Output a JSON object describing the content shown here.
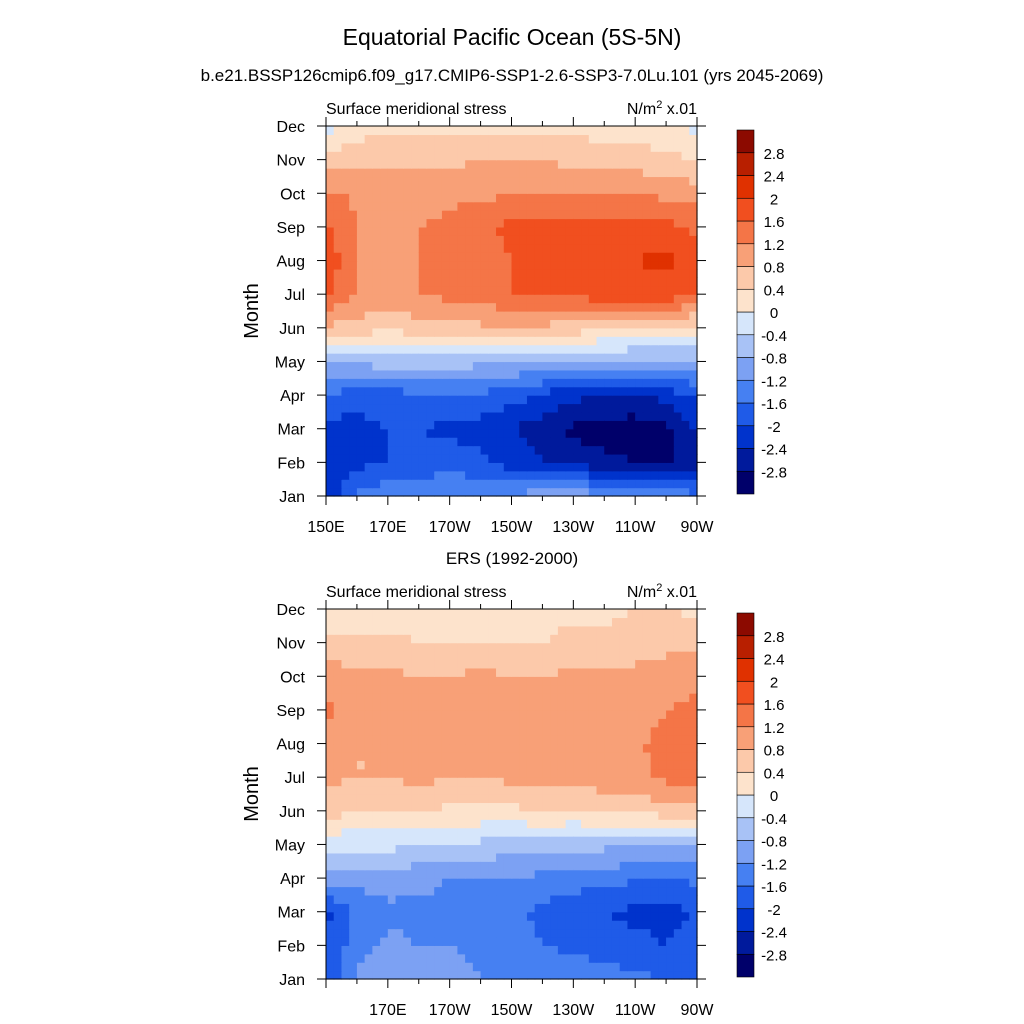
{
  "figure": {
    "title": "Equatorial Pacific Ocean (5S-5N)"
  },
  "chart_data": [
    {
      "type": "heatmap",
      "title": "b.e21.BSSP126cmip6.f09_g17.CMIP6-SSP1-2.6-SSP3-7.0Lu.101 (yrs 2045-2069)",
      "left_label": "Surface meridional stress",
      "right_label": "N/m",
      "units_exponent": "2",
      "units_suffix": " x.01",
      "ylabel": "Month",
      "xlabel": "",
      "x_tick_labels": [
        "150E",
        "170E",
        "170W",
        "150W",
        "130W",
        "110W",
        "90W"
      ],
      "y_tick_labels": [
        "Jan",
        "Feb",
        "Mar",
        "Apr",
        "May",
        "Jun",
        "Jul",
        "Aug",
        "Sep",
        "Oct",
        "Nov",
        "Dec"
      ],
      "x": [
        150,
        160,
        170,
        180,
        190,
        200,
        210,
        220,
        230,
        240,
        250,
        260,
        270
      ],
      "y": [
        "Jan",
        "Feb",
        "Mar",
        "Apr",
        "May",
        "Jun",
        "Jul",
        "Aug",
        "Sep",
        "Oct",
        "Nov",
        "Dec"
      ],
      "z": [
        [
          -2.3,
          -1.5,
          -1.3,
          -1.2,
          -1.2,
          -1.2,
          -1.1,
          -1.0,
          -1.0,
          -1.0,
          -1.1,
          -1.3,
          -1.5
        ],
        [
          -2.3,
          -2.1,
          -2.0,
          -1.9,
          -1.8,
          -1.9,
          -2.2,
          -2.4,
          -2.5,
          -2.7,
          -2.8,
          -2.9,
          -2.6
        ],
        [
          -2.2,
          -2.1,
          -2.0,
          -2.0,
          -2.1,
          -2.2,
          -2.4,
          -2.6,
          -2.9,
          -3.0,
          -3.0,
          -2.9,
          -2.4
        ],
        [
          -1.6,
          -1.9,
          -1.8,
          -1.7,
          -1.6,
          -1.7,
          -1.8,
          -2.1,
          -2.3,
          -2.4,
          -2.5,
          -2.3,
          -1.9
        ],
        [
          -0.8,
          -0.7,
          -0.6,
          -0.6,
          -0.6,
          -0.7,
          -0.8,
          -0.8,
          -0.8,
          -0.9,
          -0.9,
          -0.9,
          -0.9
        ],
        [
          0.7,
          0.6,
          0.5,
          0.6,
          0.6,
          0.7,
          0.8,
          0.7,
          0.6,
          0.5,
          0.4,
          0.3,
          0.2
        ],
        [
          1.7,
          1.2,
          1.1,
          1.2,
          1.3,
          1.4,
          1.6,
          1.7,
          1.7,
          1.8,
          1.8,
          1.8,
          1.7
        ],
        [
          1.9,
          1.2,
          1.1,
          1.2,
          1.3,
          1.4,
          1.6,
          1.8,
          1.9,
          1.9,
          2.0,
          2.1,
          1.8
        ],
        [
          1.7,
          1.2,
          1.1,
          1.2,
          1.3,
          1.5,
          1.7,
          1.8,
          1.8,
          1.8,
          1.8,
          1.7,
          1.5
        ],
        [
          1.3,
          1.1,
          1.0,
          1.0,
          1.1,
          1.1,
          1.2,
          1.2,
          1.2,
          1.2,
          1.2,
          1.1,
          1.0
        ],
        [
          0.6,
          0.7,
          0.7,
          0.7,
          0.7,
          0.8,
          0.8,
          0.8,
          0.7,
          0.6,
          0.6,
          0.5,
          0.4
        ],
        [
          -0.2,
          0.2,
          0.3,
          0.3,
          0.3,
          0.3,
          0.3,
          0.3,
          0.3,
          0.2,
          0.2,
          0.1,
          -0.1
        ]
      ],
      "levels": [
        -2.8,
        -2.4,
        -2,
        -1.6,
        -1.2,
        -0.8,
        -0.4,
        0,
        0.4,
        0.8,
        1.2,
        1.6,
        2,
        2.4,
        2.8
      ],
      "colorbar_labels": [
        "-2.8",
        "-2.4",
        "-2",
        "-1.6",
        "-1.2",
        "-0.8",
        "-0.4",
        "0",
        "0.4",
        "0.8",
        "1.2",
        "1.6",
        "2",
        "2.4",
        "2.8"
      ],
      "colors": [
        "#00006a",
        "#001a9c",
        "#0033cc",
        "#1f5be8",
        "#4680f2",
        "#7ca1f3",
        "#a8c2f6",
        "#d6e6fb",
        "#fde3cc",
        "#fcc9aa",
        "#f8a077",
        "#f47547",
        "#f14f1f",
        "#e03100",
        "#b81f00",
        "#8c0a00"
      ],
      "zlim": [
        -3.2,
        3.2
      ]
    },
    {
      "type": "heatmap",
      "title": "ERS (1992-2000)",
      "left_label": "Surface meridional stress",
      "right_label": "N/m",
      "units_exponent": "2",
      "units_suffix": " x.01",
      "ylabel": "Month",
      "xlabel": "",
      "x_tick_labels": [
        "170E",
        "170W",
        "150W",
        "130W",
        "110W",
        "90W"
      ],
      "y_tick_labels": [
        "Jan",
        "Feb",
        "Mar",
        "Apr",
        "May",
        "Jun",
        "Jul",
        "Aug",
        "Sep",
        "Oct",
        "Nov",
        "Dec"
      ],
      "x": [
        150,
        160,
        170,
        180,
        190,
        200,
        210,
        220,
        230,
        240,
        250,
        260,
        270
      ],
      "y": [
        "Jan",
        "Feb",
        "Mar",
        "Apr",
        "May",
        "Jun",
        "Jul",
        "Aug",
        "Sep",
        "Oct",
        "Nov",
        "Dec"
      ],
      "z": [
        [
          -1.9,
          -1.1,
          -0.9,
          -1.0,
          -1.1,
          -1.2,
          -1.2,
          -1.3,
          -1.3,
          -1.4,
          -1.5,
          -1.6,
          -1.7
        ],
        [
          -2.0,
          -1.4,
          -1.1,
          -1.2,
          -1.2,
          -1.3,
          -1.4,
          -1.6,
          -1.7,
          -1.8,
          -1.9,
          -2.0,
          -1.9
        ],
        [
          -2.1,
          -1.5,
          -1.3,
          -1.3,
          -1.3,
          -1.4,
          -1.5,
          -1.7,
          -1.9,
          -2.0,
          -2.1,
          -2.1,
          -2.0
        ],
        [
          -1.0,
          -1.1,
          -1.0,
          -1.1,
          -1.2,
          -1.2,
          -1.2,
          -1.3,
          -1.4,
          -1.4,
          -1.6,
          -1.7,
          -1.5
        ],
        [
          -0.3,
          -0.3,
          -0.3,
          -0.4,
          -0.4,
          -0.5,
          -0.6,
          -0.6,
          -0.7,
          -0.7,
          -0.8,
          -0.8,
          -0.8
        ],
        [
          0.6,
          0.4,
          0.4,
          0.4,
          0.3,
          0.3,
          0.3,
          0.4,
          0.4,
          0.5,
          0.5,
          0.6,
          0.6
        ],
        [
          0.9,
          0.8,
          0.8,
          0.9,
          0.8,
          0.8,
          0.9,
          0.9,
          0.9,
          1.0,
          1.1,
          1.3,
          1.4
        ],
        [
          1.0,
          0.8,
          0.8,
          0.9,
          0.9,
          0.9,
          0.9,
          1.0,
          1.0,
          1.0,
          1.1,
          1.4,
          1.4
        ],
        [
          1.3,
          1.0,
          0.9,
          0.9,
          1.0,
          1.0,
          0.9,
          0.9,
          1.0,
          1.0,
          1.0,
          1.2,
          1.3
        ],
        [
          1.0,
          0.9,
          0.9,
          0.8,
          0.8,
          0.9,
          0.8,
          0.8,
          0.9,
          0.9,
          0.9,
          1.0,
          1.1
        ],
        [
          0.6,
          0.5,
          0.5,
          0.4,
          0.4,
          0.4,
          0.4,
          0.4,
          0.5,
          0.5,
          0.6,
          0.7,
          0.7
        ],
        [
          -0.1,
          0.1,
          0.2,
          0.2,
          0.1,
          0.0,
          0.2,
          0.3,
          0.3,
          0.3,
          0.4,
          0.4,
          0.3
        ]
      ],
      "levels": [
        -2.8,
        -2.4,
        -2,
        -1.6,
        -1.2,
        -0.8,
        -0.4,
        0,
        0.4,
        0.8,
        1.2,
        1.6,
        2,
        2.4,
        2.8
      ],
      "colorbar_labels": [
        "-2.8",
        "-2.4",
        "-2",
        "-1.6",
        "-1.2",
        "-0.8",
        "-0.4",
        "0",
        "0.4",
        "0.8",
        "1.2",
        "1.6",
        "2",
        "2.4",
        "2.8"
      ],
      "colors": [
        "#00006a",
        "#001a9c",
        "#0033cc",
        "#1f5be8",
        "#4680f2",
        "#7ca1f3",
        "#a8c2f6",
        "#d6e6fb",
        "#fde3cc",
        "#fcc9aa",
        "#f8a077",
        "#f47547",
        "#f14f1f",
        "#e03100",
        "#b81f00",
        "#8c0a00"
      ],
      "zlim": [
        -3.2,
        3.2
      ]
    }
  ]
}
